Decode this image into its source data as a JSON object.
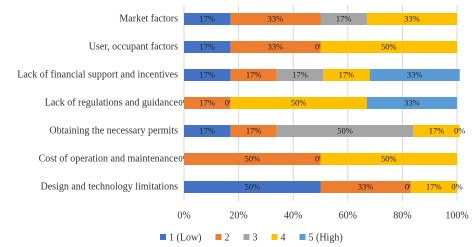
{
  "chart_data": {
    "type": "stacked_barh",
    "categories": [
      "Market factors",
      "User, occupant factors",
      "Lack of financial support and incentives",
      "Lack of regulations and guidance",
      "Obtaining the necessary permits",
      "Cost of operation and maintenance",
      "Design and technology limitations"
    ],
    "series": [
      {
        "name": "1 (Low)",
        "color": "#4472c4",
        "values": [
          17,
          17,
          17,
          0,
          17,
          0,
          50
        ],
        "value_labels": [
          "17%",
          "17%",
          "17%",
          "0%",
          "17%",
          "0%",
          "50%"
        ]
      },
      {
        "name": "2",
        "color": "#ed7d31",
        "values": [
          33,
          33,
          17,
          17,
          17,
          50,
          33
        ],
        "value_labels": [
          "33%",
          "33%",
          "17%",
          "17%",
          "17%",
          "50%",
          "33%"
        ]
      },
      {
        "name": "3",
        "color": "#a5a5a5",
        "values": [
          17,
          0,
          17,
          0,
          50,
          0,
          0
        ],
        "value_labels": [
          "17%",
          "0%",
          "17%",
          "0%",
          "50%",
          "0%",
          "0%"
        ]
      },
      {
        "name": "4",
        "color": "#ffc000",
        "values": [
          33,
          50,
          17,
          50,
          17,
          50,
          17
        ],
        "value_labels": [
          "33%",
          "50%",
          "17%",
          "50%",
          "17%",
          "50%",
          "17%"
        ]
      },
      {
        "name": "5 (High)",
        "color": "#5b9bd5",
        "values": [
          0,
          0,
          33,
          33,
          0,
          0,
          0
        ],
        "value_labels": [
          null,
          null,
          "33%",
          "33%",
          "0%",
          null,
          "0%"
        ]
      }
    ],
    "xlim": [
      0,
      100
    ],
    "xticks": [
      {
        "value": 0,
        "label": "0%"
      },
      {
        "value": 20,
        "label": "20%"
      },
      {
        "value": 40,
        "label": "40%"
      },
      {
        "value": 60,
        "label": "60%"
      },
      {
        "value": 80,
        "label": "80%"
      },
      {
        "value": 100,
        "label": "100%"
      }
    ],
    "grid": true,
    "legend": "bottom"
  }
}
